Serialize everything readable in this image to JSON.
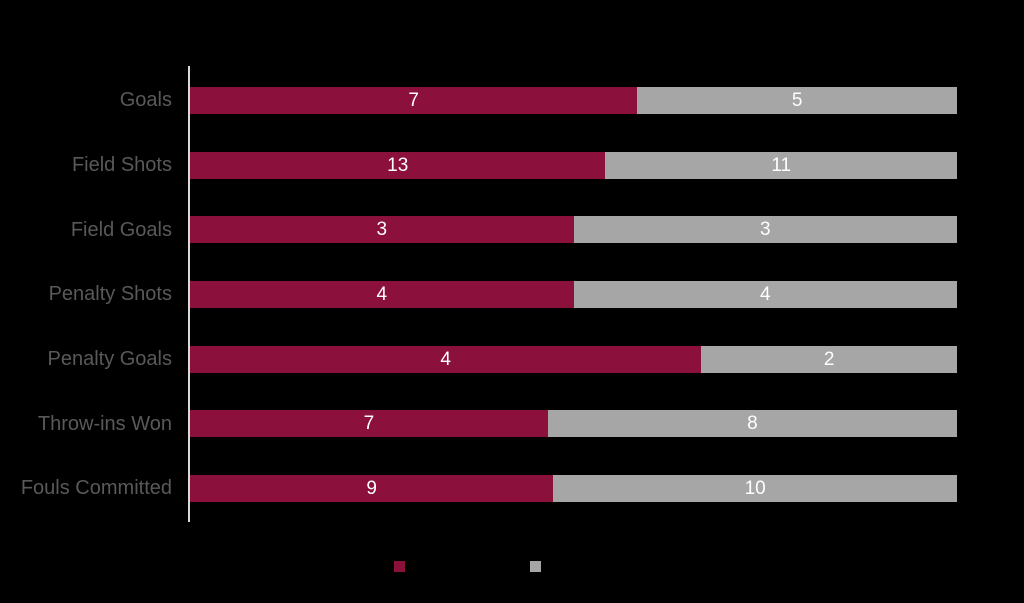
{
  "page": {
    "background": "#000000"
  },
  "colors": {
    "axis_line": "#d9d9d9",
    "category_label": "#595959",
    "value_label": "#ffffff"
  },
  "chart_data": {
    "type": "bar",
    "orientation": "horizontal",
    "stacking": "100-percent-stacked",
    "categories": [
      "Goals",
      "Field Shots",
      "Field Goals",
      "Penalty Shots",
      "Penalty Goals",
      "Throw-ins Won",
      "Fouls Committed"
    ],
    "series": [
      {
        "name": "maroon-series",
        "color": "#8c103c",
        "values": [
          7,
          13,
          3,
          4,
          4,
          7,
          9
        ]
      },
      {
        "name": "gray-series",
        "color": "#a6a6a6",
        "values": [
          5,
          11,
          3,
          4,
          2,
          8,
          10
        ]
      }
    ],
    "data_labels_visible": true,
    "grid": false,
    "legend_position": "bottom-center",
    "legend_text_visible": false
  }
}
